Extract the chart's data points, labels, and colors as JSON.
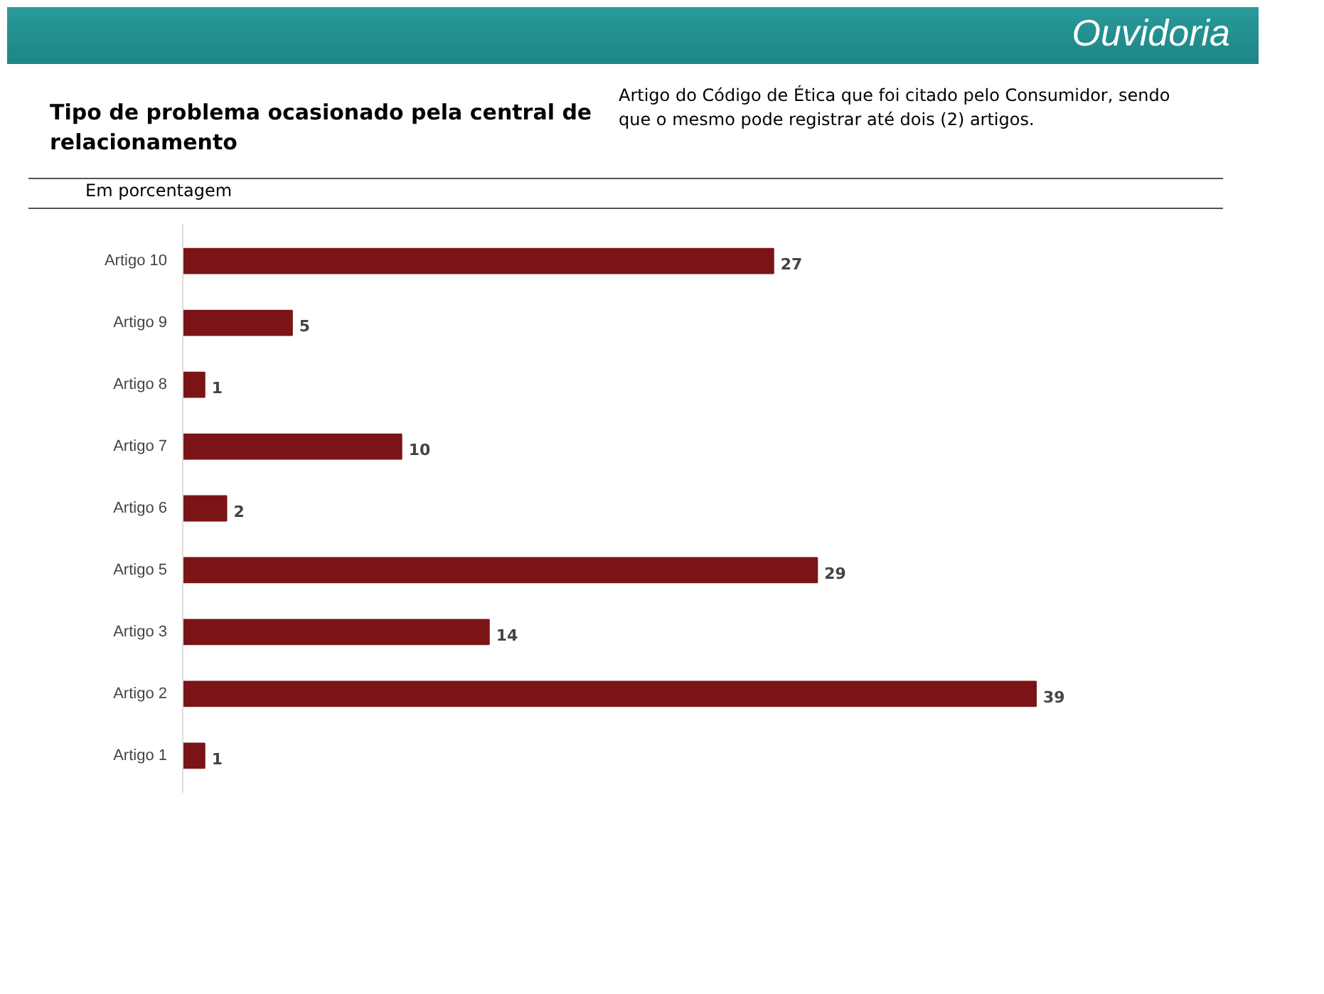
{
  "chart_data": {
    "type": "bar",
    "orientation": "horizontal",
    "title": "Tipo de problema ocasionado pela central de relacionamento",
    "subtitle": "Em porcentagem",
    "annotations": [
      "Ouvidoria",
      "Artigo do Código de Ética que foi citado pelo Consumidor, sendo que o mesmo pode registrar até dois (2) artigos."
    ],
    "categories": [
      "Artigo 10",
      "Artigo 9",
      "Artigo 8",
      "Artigo 7",
      "Artigo 6",
      "Artigo 5",
      "Artigo 3",
      "Artigo 2",
      "Artigo 1"
    ],
    "values": [
      27,
      5,
      1,
      10,
      2,
      29,
      14,
      39,
      1
    ],
    "color": "#7b1416",
    "data_labels": true,
    "grid": false
  }
}
